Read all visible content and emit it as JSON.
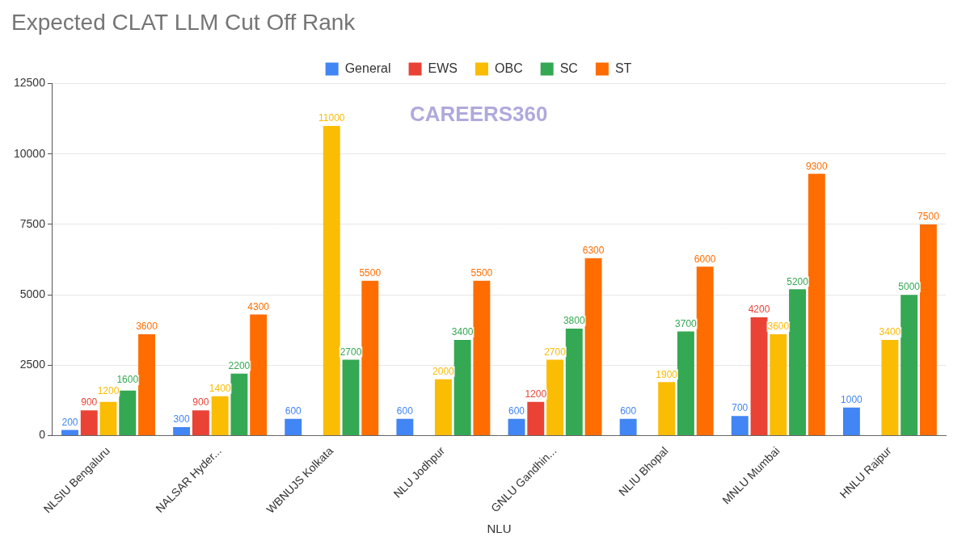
{
  "chart_data": {
    "type": "bar",
    "title": "Expected CLAT LLM Cut Off Rank",
    "x_label": "NLU",
    "categories": [
      "NLSIU Bengaluru",
      "NALSAR Hyder...",
      "WBNUJS Kolkata",
      "NLU Jodhpur",
      "GNLU Gandhin...",
      "NLIU Bhopal",
      "MNLU Mumbai",
      "HNLU Raipur"
    ],
    "series": [
      {
        "name": "General",
        "color": "#4285f4",
        "values": [
          200,
          300,
          600,
          600,
          600,
          600,
          700,
          1000
        ]
      },
      {
        "name": "EWS",
        "color": "#ea4335",
        "values": [
          900,
          900,
          null,
          null,
          1200,
          null,
          4200,
          null
        ]
      },
      {
        "name": "OBC",
        "color": "#fbbc04",
        "values": [
          1200,
          1400,
          11000,
          2000,
          2700,
          1900,
          3600,
          3400
        ]
      },
      {
        "name": "SC",
        "color": "#34a853",
        "values": [
          1600,
          2200,
          2700,
          3400,
          3800,
          3700,
          5200,
          5000
        ]
      },
      {
        "name": "ST",
        "color": "#ff6d01",
        "values": [
          3600,
          4300,
          5500,
          5500,
          6300,
          6000,
          9300,
          7500
        ]
      }
    ],
    "ylim": [
      0,
      12500
    ],
    "yticks": [
      0,
      2500,
      5000,
      7500,
      10000,
      12500
    ],
    "grid": true,
    "legend": "top",
    "data_labels": true,
    "annotations": [
      "CAREERS360"
    ]
  }
}
